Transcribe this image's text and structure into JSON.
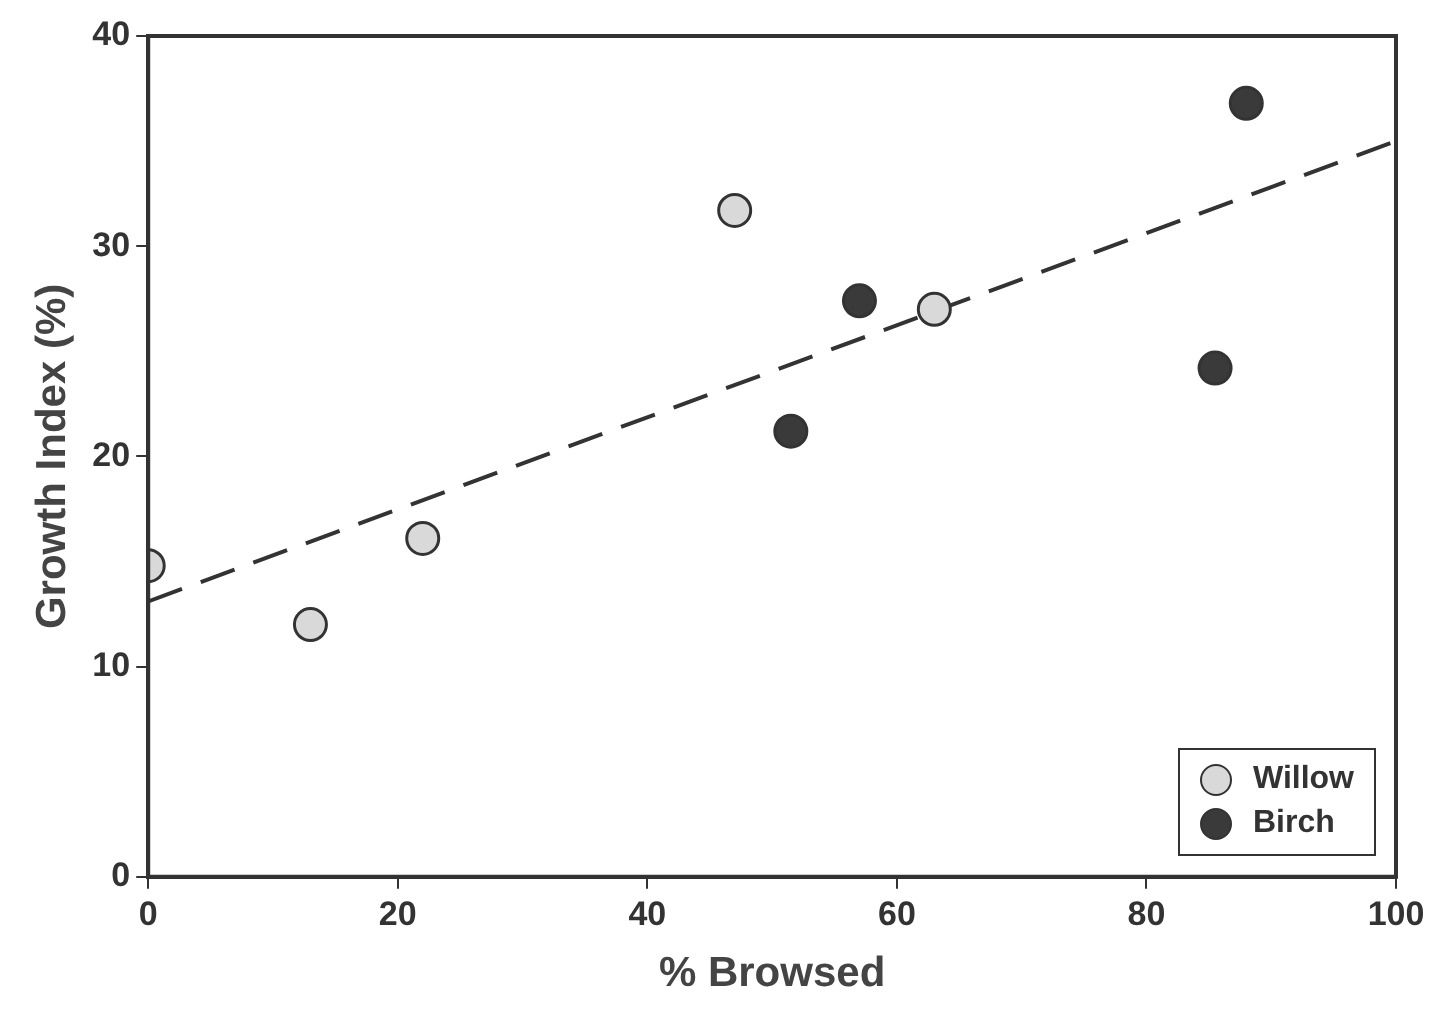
{
  "chart_data": {
    "type": "scatter",
    "xlabel": "% Browsed",
    "ylabel": "Growth Index (%)",
    "xlim": [
      0,
      100
    ],
    "xticks": [
      0,
      20,
      40,
      60,
      80,
      100
    ],
    "ylim": [
      0,
      40
    ],
    "yticks": [
      0,
      10,
      20,
      30,
      40
    ],
    "grid": false,
    "legend": "bottom right",
    "marker": "circle",
    "series": [
      {
        "name": "Willow",
        "color": "#d9d9d9",
        "x": [
          0,
          13,
          22,
          47,
          63
        ],
        "values": [
          14.8,
          12.0,
          16.1,
          31.7,
          27.0
        ]
      },
      {
        "name": "Birch",
        "color": "#3a3a3a",
        "x": [
          51.5,
          57,
          85.5,
          88
        ],
        "values": [
          21.2,
          27.4,
          24.2,
          36.8
        ]
      },
      {
        "type": "line",
        "color": "#333333",
        "line_style": "dashed",
        "marker": "none",
        "x": [
          0,
          100
        ],
        "values": [
          13.1,
          35
        ]
      }
    ]
  }
}
